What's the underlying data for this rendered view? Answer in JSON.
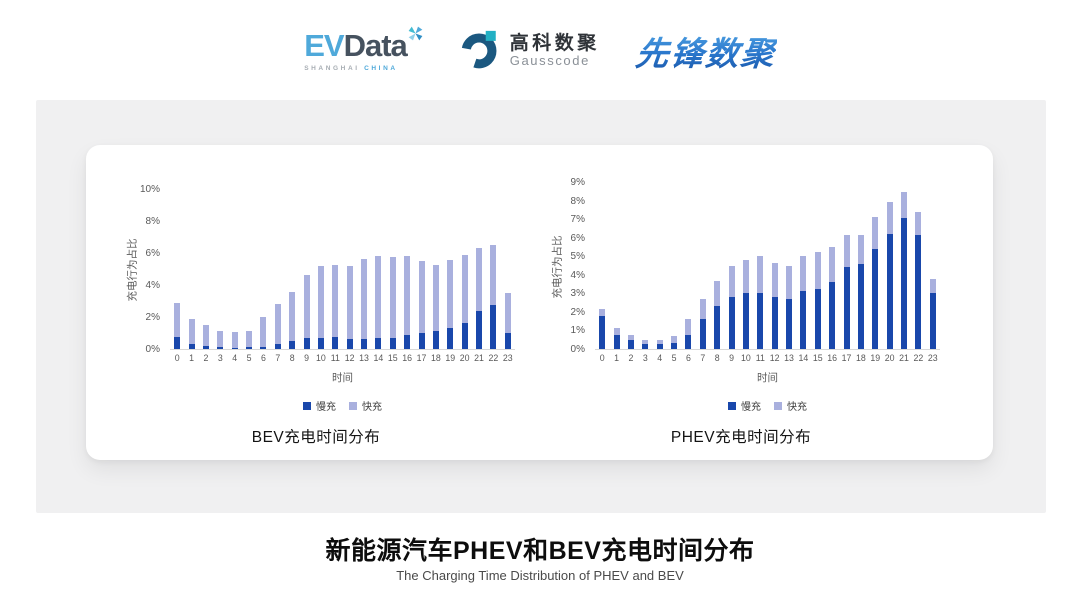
{
  "header": {
    "evdata": {
      "ev": "EV",
      "data": "Data",
      "tagline_left": "SHANGHAI",
      "tagline_right": "CHINA"
    },
    "gausscode": {
      "cn": "高科数聚",
      "en": "Gausscode"
    },
    "xianfeng": {
      "text": "先锋数聚"
    }
  },
  "chart_data": [
    {
      "type": "bar",
      "stacked": true,
      "title": "BEV充电时间分布",
      "xlabel": "时间",
      "ylabel": "充电行为占比",
      "x": [
        0,
        1,
        2,
        3,
        4,
        5,
        6,
        7,
        8,
        9,
        10,
        11,
        12,
        13,
        14,
        15,
        16,
        17,
        18,
        19,
        20,
        21,
        22,
        23
      ],
      "series": [
        {
          "name": "慢充",
          "color": "#1947ab",
          "values": [
            0.78,
            0.34,
            0.17,
            0.1,
            0.09,
            0.11,
            0.15,
            0.34,
            0.49,
            0.7,
            0.68,
            0.72,
            0.62,
            0.64,
            0.7,
            0.7,
            0.85,
            1.0,
            1.1,
            1.31,
            1.61,
            2.4,
            2.74,
            1.0
          ]
        },
        {
          "name": "快充",
          "color": "#a9b0de",
          "values": [
            2.1,
            1.55,
            1.34,
            1.05,
            0.95,
            1.04,
            1.83,
            2.45,
            3.08,
            3.9,
            4.51,
            4.51,
            4.59,
            5.0,
            5.09,
            5.07,
            4.98,
            4.47,
            4.18,
            4.26,
            4.26,
            3.94,
            3.79,
            2.49
          ]
        }
      ],
      "ylim": [
        0,
        10
      ],
      "ytick_step": 2,
      "ytick_suffix": "%",
      "grid": false,
      "legend_position": "bottom"
    },
    {
      "type": "bar",
      "stacked": true,
      "title": "PHEV充电时间分布",
      "xlabel": "时间",
      "ylabel": "充电行为占比",
      "x": [
        0,
        1,
        2,
        3,
        4,
        5,
        6,
        7,
        8,
        9,
        10,
        11,
        12,
        13,
        14,
        15,
        16,
        17,
        18,
        19,
        20,
        21,
        22,
        23
      ],
      "series": [
        {
          "name": "慢充",
          "color": "#1947ab",
          "values": [
            1.76,
            0.76,
            0.47,
            0.27,
            0.25,
            0.31,
            0.74,
            1.64,
            2.32,
            2.81,
            3.03,
            3.01,
            2.81,
            2.67,
            3.12,
            3.26,
            3.6,
            4.4,
            4.56,
            5.41,
            6.22,
            7.05,
            6.14,
            3.03
          ]
        },
        {
          "name": "快充",
          "color": "#a9b0de",
          "values": [
            0.42,
            0.38,
            0.27,
            0.23,
            0.25,
            0.37,
            0.86,
            1.04,
            1.32,
            1.69,
            1.76,
            1.98,
            1.8,
            1.82,
            1.87,
            1.98,
            1.9,
            1.74,
            1.58,
            1.69,
            1.73,
            1.4,
            1.27,
            0.77
          ]
        }
      ],
      "ylim": [
        0,
        9
      ],
      "ytick_step": 1,
      "ytick_suffix": "%",
      "grid": false,
      "legend_position": "bottom"
    }
  ],
  "footer": {
    "title": "新能源汽车PHEV和BEV充电时间分布",
    "subtitle": "The Charging Time Distribution of PHEV and BEV"
  },
  "colors": {
    "slow_charge": "#1947ab",
    "fast_charge": "#a9b0de",
    "panel_bg": "#f0f0f1",
    "card_bg": "#ffffff",
    "evdata_blue": "#4fa9da",
    "evdata_dark": "#46525f",
    "gauss_teal": "#22b0c4",
    "gauss_navy": "#1b5880",
    "xianfeng_blue": "#2a77cc"
  }
}
